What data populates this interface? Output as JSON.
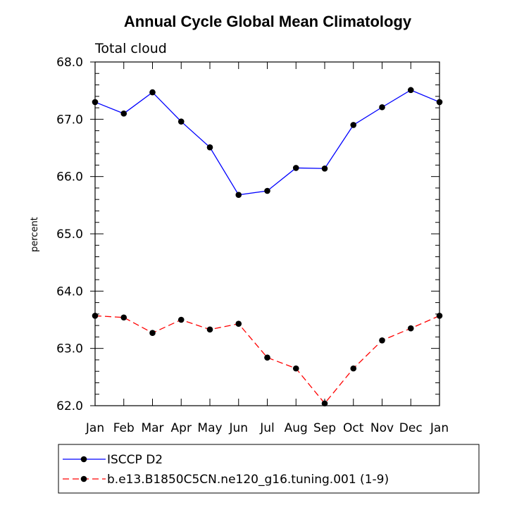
{
  "chart_data": {
    "type": "line",
    "title": "Annual Cycle Global Mean Climatology",
    "subtitle": "Total cloud",
    "xlabel": "",
    "ylabel": "percent",
    "categories": [
      "Jan",
      "Feb",
      "Mar",
      "Apr",
      "May",
      "Jun",
      "Jul",
      "Aug",
      "Sep",
      "Oct",
      "Nov",
      "Dec",
      "Jan"
    ],
    "ylim": [
      62.0,
      68.0
    ],
    "yticks": [
      62.0,
      63.0,
      64.0,
      65.0,
      66.0,
      67.0,
      68.0
    ],
    "ytick_labels": [
      "62.0",
      "63.0",
      "64.0",
      "65.0",
      "66.0",
      "67.0",
      "68.0"
    ],
    "series": [
      {
        "name": "ISCCP D2",
        "color": "#0000ff",
        "dash": "solid",
        "values": [
          67.3,
          67.1,
          67.47,
          66.96,
          66.51,
          65.68,
          65.75,
          66.15,
          66.14,
          66.9,
          67.21,
          67.51,
          67.3
        ]
      },
      {
        "name": "b.e13.B1850C5CN.ne120_g16.tuning.001 (1-9)",
        "color": "#ff0000",
        "dash": "dashed",
        "values": [
          63.57,
          63.54,
          63.27,
          63.5,
          63.33,
          63.43,
          62.84,
          62.65,
          62.04,
          62.65,
          63.14,
          63.35,
          63.57
        ]
      }
    ]
  }
}
